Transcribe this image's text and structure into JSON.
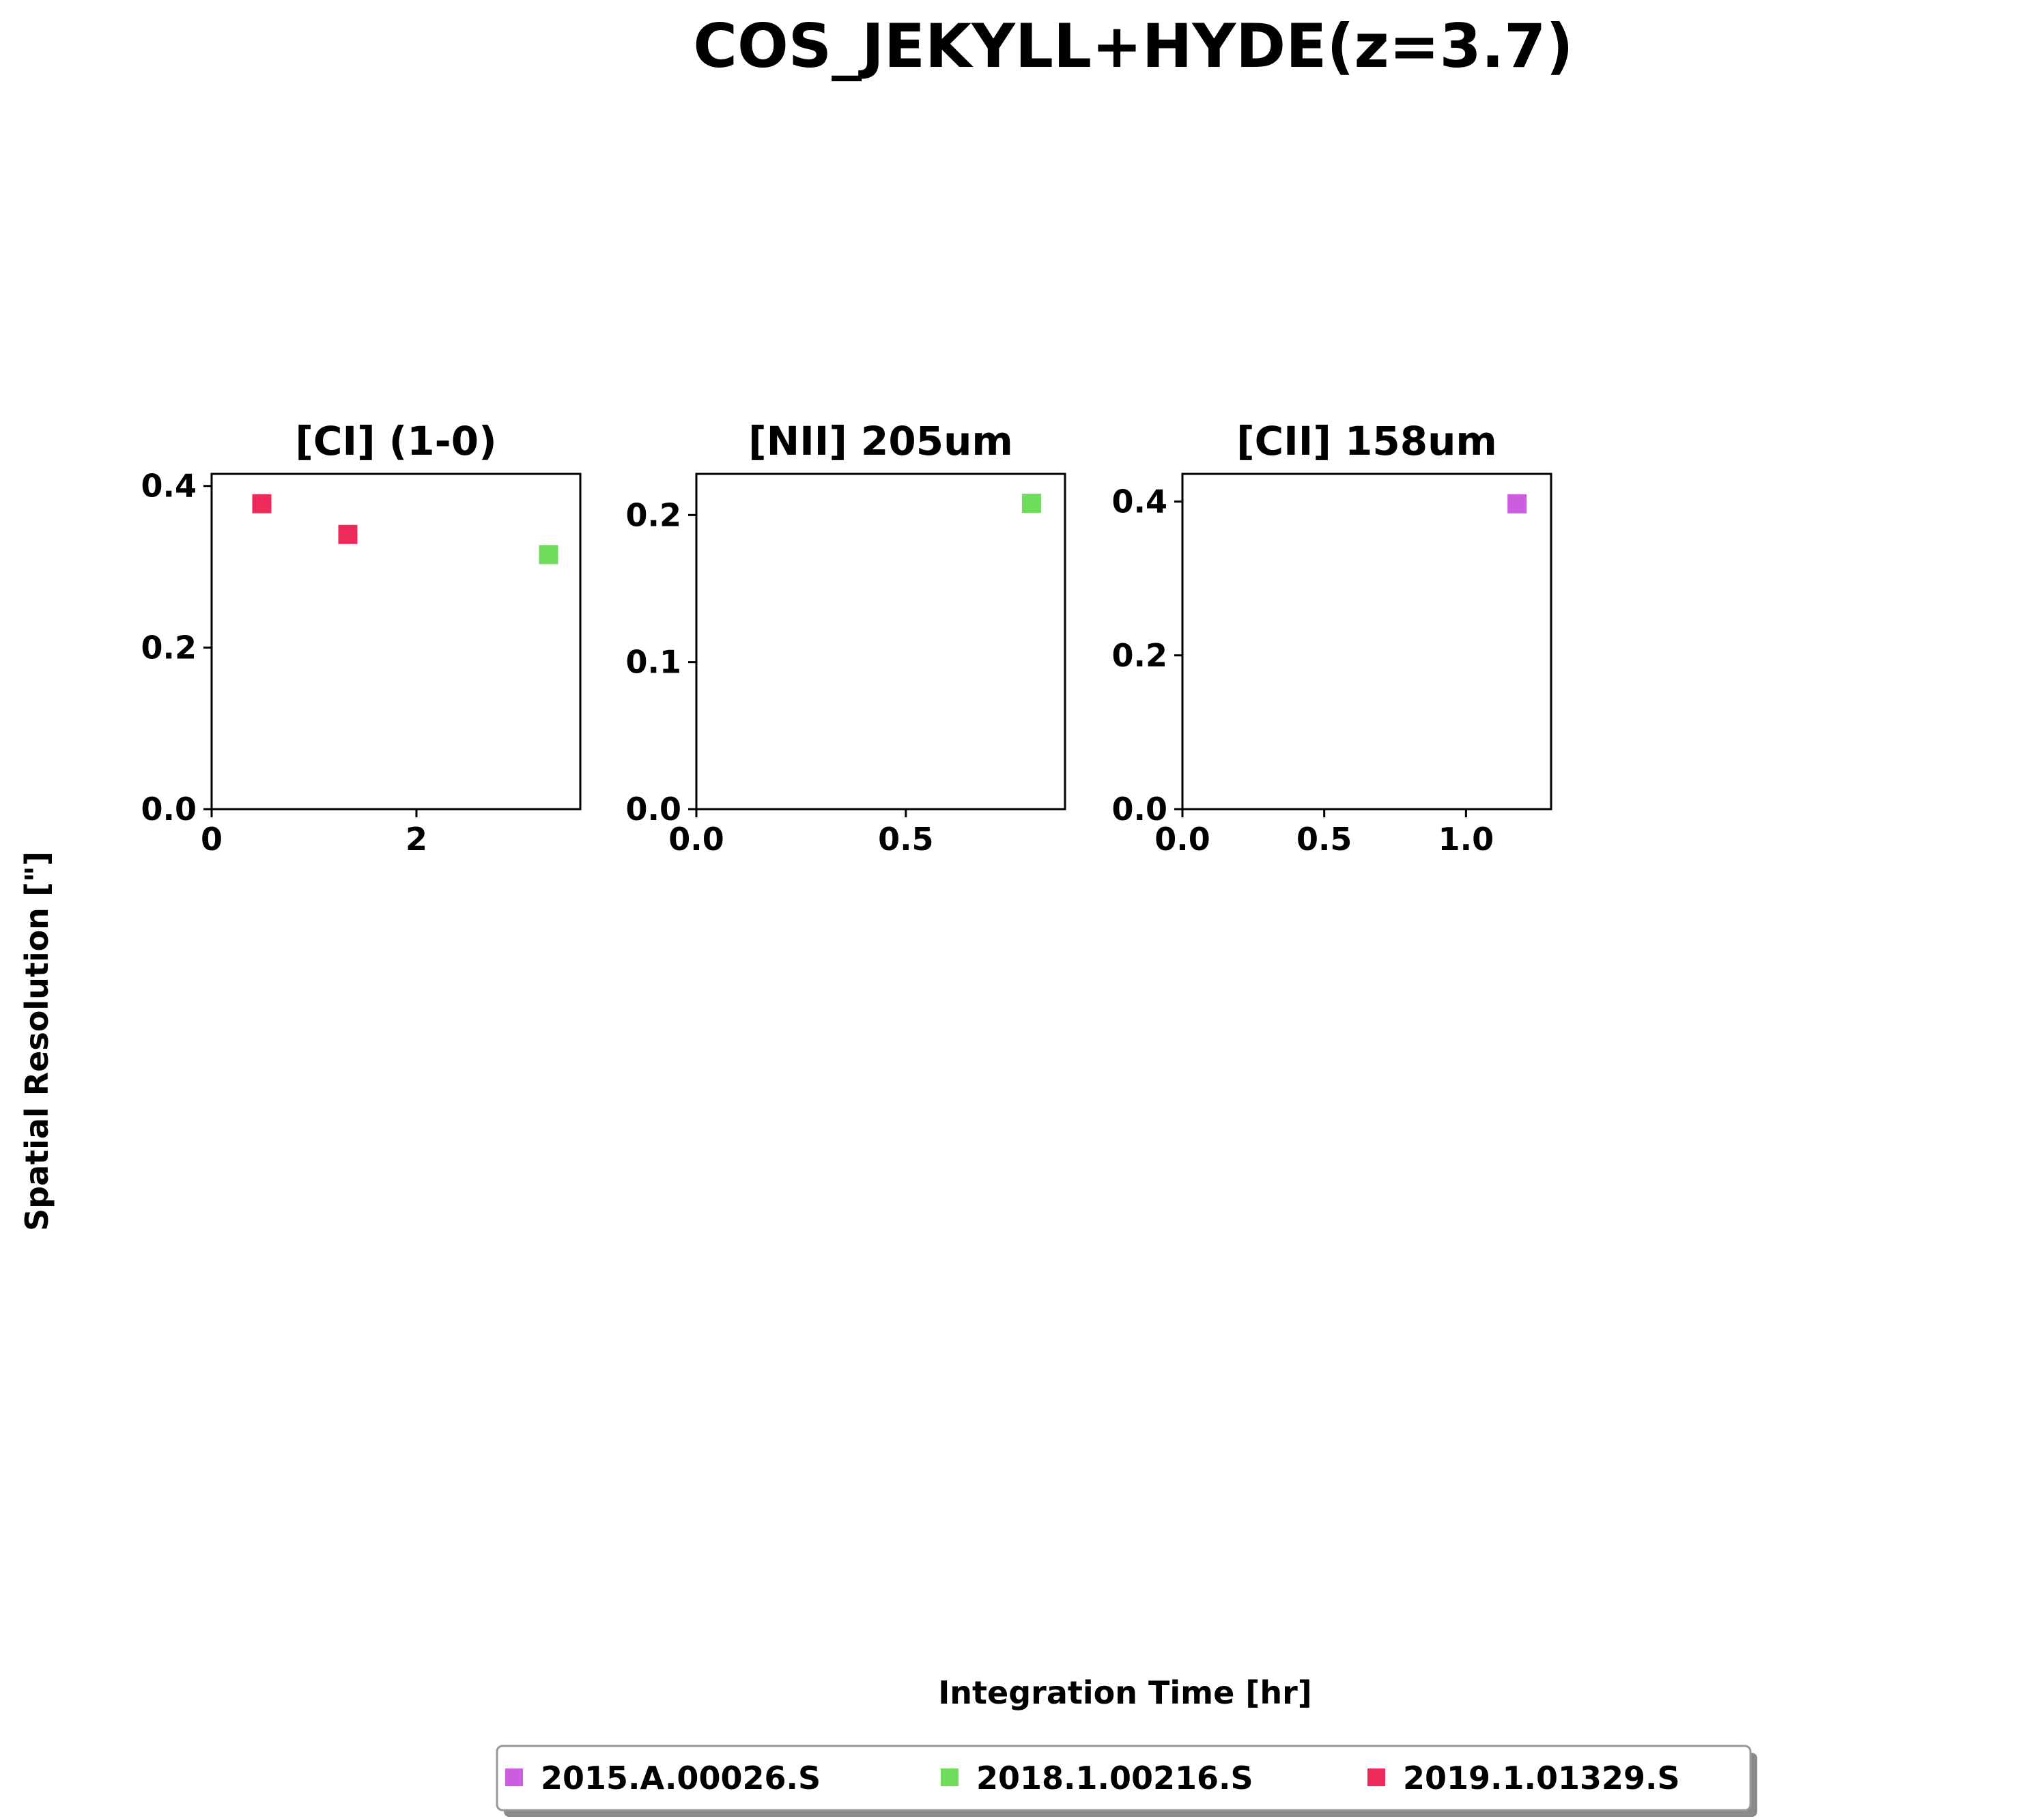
{
  "figure": {
    "title": "COS_JEKYLL+HYDE(z=3.7)",
    "xlabel": "Integration Time [hr]",
    "ylabel": "Spatial Resolution [\"]"
  },
  "legend": {
    "placement": "bottom-center",
    "entries": [
      {
        "label": "2015.A.00026.S",
        "color": "#cc5ce0"
      },
      {
        "label": "2018.1.00216.S",
        "color": "#70dc5c"
      },
      {
        "label": "2019.1.01329.S",
        "color": "#ee2a5a"
      }
    ]
  },
  "chart_data": [
    {
      "type": "scatter",
      "title": "[CI] (1-0)",
      "xlim": [
        0,
        3.6
      ],
      "ylim": [
        0,
        0.415
      ],
      "xticks": [
        0,
        2
      ],
      "xtick_labels": [
        "0",
        "2"
      ],
      "yticks": [
        0.0,
        0.2,
        0.4
      ],
      "ytick_labels": [
        "0.0",
        "0.2",
        "0.4"
      ],
      "points": [
        {
          "x": 0.49,
          "y": 0.378,
          "series": "2019.1.01329.S",
          "color": "#ee2a5a"
        },
        {
          "x": 1.33,
          "y": 0.34,
          "series": "2019.1.01329.S",
          "color": "#ee2a5a"
        },
        {
          "x": 3.29,
          "y": 0.315,
          "series": "2018.1.00216.S",
          "color": "#70dc5c"
        }
      ]
    },
    {
      "type": "scatter",
      "title": "[NII] 205um",
      "xlim": [
        0,
        0.88
      ],
      "ylim": [
        0,
        0.228
      ],
      "xticks": [
        0.0,
        0.5
      ],
      "xtick_labels": [
        "0.0",
        "0.5"
      ],
      "yticks": [
        0.0,
        0.1,
        0.2
      ],
      "ytick_labels": [
        "0.0",
        "0.1",
        "0.2"
      ],
      "points": [
        {
          "x": 0.8,
          "y": 0.208,
          "series": "2018.1.00216.S",
          "color": "#70dc5c"
        }
      ]
    },
    {
      "type": "scatter",
      "title": "[CII] 158um",
      "xlim": [
        0,
        1.3
      ],
      "ylim": [
        0,
        0.436
      ],
      "xticks": [
        0.0,
        0.5,
        1.0
      ],
      "xtick_labels": [
        "0.0",
        "0.5",
        "1.0"
      ],
      "yticks": [
        0.0,
        0.2,
        0.4
      ],
      "ytick_labels": [
        "0.0",
        "0.2",
        "0.4"
      ],
      "points": [
        {
          "x": 1.18,
          "y": 0.397,
          "series": "2015.A.00026.S",
          "color": "#cc5ce0"
        }
      ]
    }
  ]
}
